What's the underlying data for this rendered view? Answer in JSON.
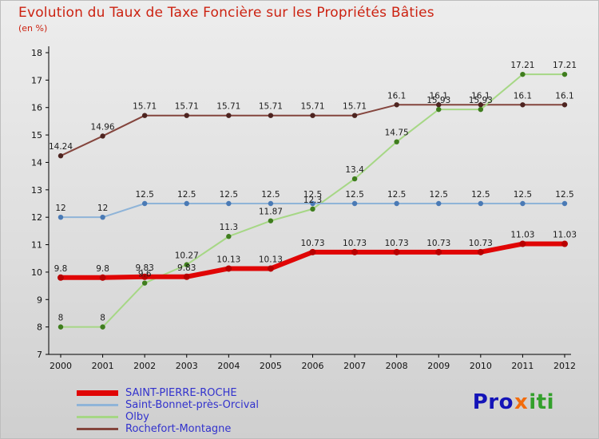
{
  "title": "Evolution du Taux de Taxe Foncière sur les Propriétés Bâties",
  "subtitle": "(en %)",
  "chart_data": {
    "type": "line",
    "x": [
      2000,
      2001,
      2002,
      2003,
      2004,
      2005,
      2006,
      2007,
      2008,
      2009,
      2010,
      2011,
      2012
    ],
    "ylim": [
      7,
      18
    ],
    "yticks": [
      7,
      8,
      9,
      10,
      11,
      12,
      13,
      14,
      15,
      16,
      17,
      18
    ],
    "grid": false,
    "legend_position": "bottom-left",
    "series": [
      {
        "name": "SAINT-PIERRE-ROCHE",
        "color": "#e00505",
        "dot": "#b80000",
        "width": 6,
        "values": [
          9.8,
          9.8,
          9.83,
          9.83,
          10.13,
          10.13,
          10.73,
          10.73,
          10.73,
          10.73,
          10.73,
          11.03,
          11.03
        ]
      },
      {
        "name": "Saint-Bonnet-près-Orcival",
        "color": "#8fb4d8",
        "dot": "#4a7ab5",
        "width": 2,
        "values": [
          12,
          12,
          12.5,
          12.5,
          12.5,
          12.5,
          12.5,
          12.5,
          12.5,
          12.5,
          12.5,
          12.5,
          12.5
        ]
      },
      {
        "name": "Olby",
        "color": "#a6d785",
        "dot": "#3f7d1e",
        "width": 2,
        "values": [
          8,
          8,
          9.6,
          10.27,
          11.3,
          11.87,
          12.3,
          13.4,
          14.75,
          15.93,
          15.93,
          17.21,
          17.21
        ]
      },
      {
        "name": "Rochefort-Montagne",
        "color": "#84453d",
        "dot": "#4d2420",
        "width": 2,
        "values": [
          14.24,
          14.96,
          15.71,
          15.71,
          15.71,
          15.71,
          15.71,
          15.71,
          16.1,
          16.1,
          16.1,
          16.1,
          16.1
        ]
      }
    ]
  },
  "legend": {
    "items": [
      "SAINT-PIERRE-ROCHE",
      "Saint-Bonnet-près-Orcival",
      "Olby",
      "Rochefort-Montagne"
    ]
  },
  "logo": {
    "pro": "Pro",
    "x": "x",
    "iti": "iti"
  }
}
